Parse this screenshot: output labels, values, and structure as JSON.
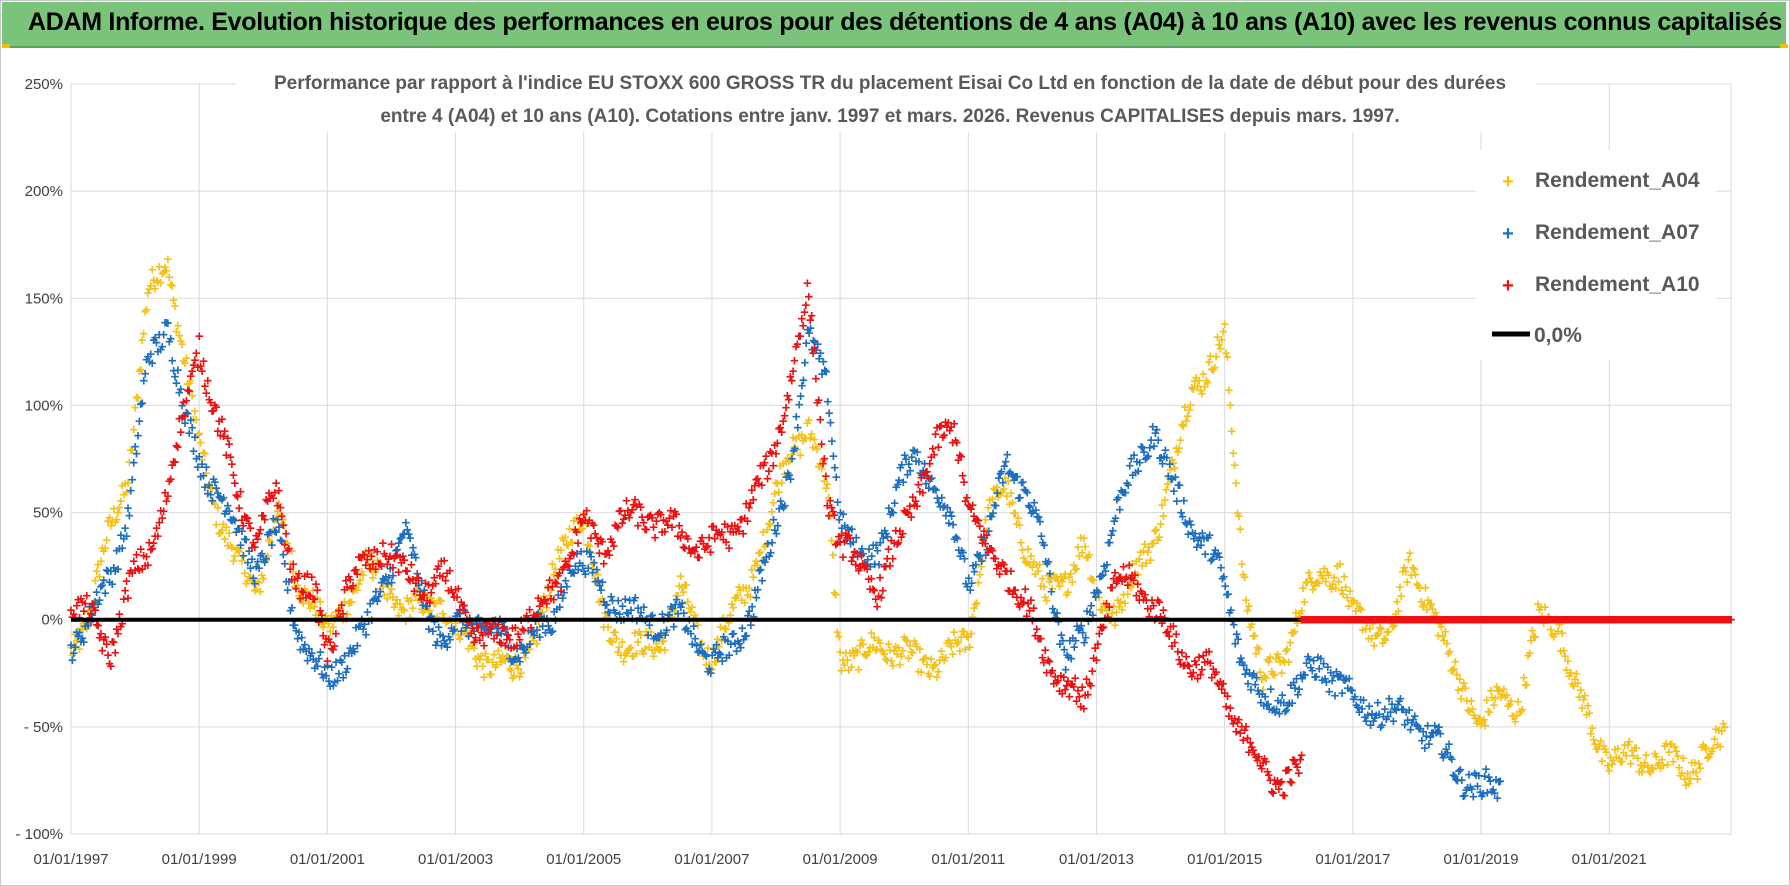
{
  "header": {
    "title": "ADAM Informe. Evolution historique des performances en euros pour des détentions de 4 ans (A04) à 10 ans (A10) avec les revenus connus capitalisés"
  },
  "colors": {
    "a04": "#f5c21b",
    "a07": "#1f6fbf",
    "a10": "#ee1111",
    "zero": "#000000",
    "grid": "#d9d9d9",
    "banner": "#79c37a"
  },
  "chart_data": {
    "type": "scatter",
    "title_line1": "Performance par rapport à l'indice EU STOXX 600 GROSS TR  du placement Eisai Co Ltd en fonction de la date de début pour des durées",
    "title_line2": "entre 4 (A04) et 10 ans (A10).  Cotations entre janv. 1997 et mars. 2026.  Revenus CAPITALISES depuis mars. 1997.",
    "xlabel": "",
    "ylabel": "",
    "xlim": [
      1997.0,
      2022.9
    ],
    "ylim": [
      -100,
      250
    ],
    "y_ticks": [
      -100,
      -50,
      0,
      50,
      100,
      150,
      200,
      250
    ],
    "y_tick_labels": [
      "- 100%",
      "- 50%",
      "0%",
      "50%",
      "100%",
      "150%",
      "200%",
      "250%"
    ],
    "x_ticks": [
      1997,
      1999,
      2001,
      2003,
      2005,
      2007,
      2009,
      2011,
      2013,
      2015,
      2017,
      2019,
      2021
    ],
    "x_tick_labels": [
      "01/01/1997",
      "01/01/1999",
      "01/01/2001",
      "01/01/2003",
      "01/01/2005",
      "01/01/2007",
      "01/01/2009",
      "01/01/2011",
      "01/01/2013",
      "01/01/2015",
      "01/01/2017",
      "01/01/2019",
      "01/01/2021"
    ],
    "legend_position": "top-right",
    "series": [
      {
        "name": "Rendement_A04",
        "x": [
          1997.0,
          1997.3,
          1997.6,
          1997.9,
          1998.2,
          1998.5,
          1998.8,
          1999.0,
          1999.3,
          1999.6,
          1999.9,
          2000.2,
          2000.5,
          2000.8,
          2001.0,
          2001.3,
          2001.6,
          2001.9,
          2002.2,
          2002.5,
          2002.8,
          2003.0,
          2003.3,
          2003.6,
          2003.9,
          2004.2,
          2004.5,
          2004.8,
          2005.0,
          2005.3,
          2005.6,
          2005.9,
          2006.2,
          2006.5,
          2006.8,
          2007.0,
          2007.3,
          2007.6,
          2007.9,
          2008.2,
          2008.5,
          2008.8,
          2009.0,
          2009.3,
          2009.6,
          2009.9,
          2010.2,
          2010.5,
          2010.8,
          2011.0,
          2011.3,
          2011.6,
          2011.9,
          2012.2,
          2012.5,
          2012.8,
          2013.0,
          2013.3,
          2013.6,
          2013.9,
          2014.2,
          2014.5,
          2014.8,
          2015.0,
          2015.3,
          2015.6,
          2015.9,
          2016.2,
          2016.5,
          2016.8,
          2017.0,
          2017.3,
          2017.6,
          2017.9,
          2018.2,
          2018.5,
          2018.8,
          2019.0,
          2019.3,
          2019.6,
          2019.9,
          2020.2,
          2020.5,
          2020.8,
          2021.0,
          2021.3,
          2021.6,
          2021.9,
          2022.2,
          2022.5,
          2022.8
        ],
        "y": [
          -15,
          5,
          40,
          70,
          150,
          170,
          115,
          80,
          50,
          25,
          15,
          50,
          20,
          10,
          -10,
          10,
          25,
          15,
          5,
          5,
          10,
          -5,
          -15,
          -20,
          -25,
          -10,
          15,
          45,
          50,
          0,
          -10,
          -15,
          -10,
          15,
          -10,
          -15,
          0,
          20,
          45,
          80,
          90,
          60,
          -15,
          -20,
          -10,
          -15,
          -20,
          -20,
          -15,
          -10,
          50,
          60,
          35,
          10,
          20,
          35,
          10,
          5,
          20,
          40,
          70,
          110,
          120,
          130,
          20,
          -30,
          -20,
          10,
          20,
          25,
          0,
          -5,
          -5,
          25,
          10,
          -20,
          -35,
          -50,
          -35,
          -40,
          0,
          0,
          -35,
          -55,
          -65,
          -65,
          -65,
          -66,
          -70,
          -62,
          -55
        ]
      },
      {
        "name": "Rendement_A07",
        "x": [
          1997.0,
          1997.3,
          1997.6,
          1997.9,
          1998.2,
          1998.5,
          1998.8,
          1999.0,
          1999.3,
          1999.6,
          1999.9,
          2000.2,
          2000.5,
          2000.8,
          2001.0,
          2001.3,
          2001.6,
          2001.9,
          2002.2,
          2002.5,
          2002.8,
          2003.0,
          2003.3,
          2003.6,
          2003.9,
          2004.2,
          2004.5,
          2004.8,
          2005.0,
          2005.3,
          2005.6,
          2005.9,
          2006.2,
          2006.5,
          2006.8,
          2007.0,
          2007.3,
          2007.6,
          2007.9,
          2008.2,
          2008.5,
          2008.8,
          2009.0,
          2009.3,
          2009.6,
          2009.9,
          2010.2,
          2010.5,
          2010.8,
          2011.0,
          2011.3,
          2011.6,
          2011.9,
          2012.2,
          2012.5,
          2012.8,
          2013.0,
          2013.3,
          2013.6,
          2013.9,
          2014.2,
          2014.5,
          2014.8,
          2015.0,
          2015.3,
          2015.6,
          2015.9,
          2016.2,
          2016.5,
          2016.8,
          2017.0,
          2017.3,
          2017.6,
          2017.9,
          2018.2,
          2018.5,
          2018.8,
          2019.0,
          2019.3
        ],
        "y": [
          -10,
          0,
          20,
          50,
          120,
          140,
          90,
          75,
          60,
          40,
          25,
          40,
          0,
          -20,
          -30,
          -15,
          -5,
          20,
          40,
          10,
          -10,
          -5,
          0,
          -5,
          -15,
          -5,
          -5,
          30,
          25,
          15,
          5,
          0,
          0,
          0,
          -10,
          -20,
          -15,
          5,
          30,
          70,
          130,
          110,
          50,
          25,
          35,
          60,
          80,
          60,
          40,
          20,
          35,
          75,
          60,
          30,
          -15,
          -10,
          15,
          50,
          70,
          90,
          60,
          45,
          30,
          15,
          -20,
          -40,
          -35,
          -30,
          -20,
          -30,
          -40,
          -40,
          -45,
          -45,
          -55,
          -65,
          -75,
          -80,
          -78
        ]
      },
      {
        "name": "Rendement_A10",
        "x": [
          1997.0,
          1997.3,
          1997.6,
          1997.9,
          1998.2,
          1998.5,
          1998.8,
          1999.0,
          1999.3,
          1999.6,
          1999.9,
          2000.2,
          2000.5,
          2000.8,
          2001.0,
          2001.3,
          2001.6,
          2001.9,
          2002.2,
          2002.5,
          2002.8,
          2003.0,
          2003.3,
          2003.6,
          2003.9,
          2004.2,
          2004.5,
          2004.8,
          2005.0,
          2005.3,
          2005.6,
          2005.9,
          2006.2,
          2006.5,
          2006.8,
          2007.0,
          2007.3,
          2007.6,
          2007.9,
          2008.2,
          2008.5,
          2008.8,
          2009.0,
          2009.3,
          2009.6,
          2009.9,
          2010.2,
          2010.5,
          2010.8,
          2011.0,
          2011.3,
          2011.6,
          2011.9,
          2012.2,
          2012.5,
          2012.8,
          2013.0,
          2013.3,
          2013.6,
          2013.9,
          2014.2,
          2014.5,
          2014.8,
          2015.0,
          2015.3,
          2015.6,
          2015.9,
          2016.2
        ],
        "y": [
          10,
          0,
          -15,
          15,
          30,
          60,
          100,
          130,
          90,
          60,
          35,
          60,
          20,
          10,
          -15,
          15,
          25,
          35,
          20,
          15,
          20,
          10,
          -5,
          -10,
          -5,
          0,
          15,
          30,
          45,
          35,
          45,
          50,
          45,
          40,
          35,
          35,
          40,
          55,
          70,
          110,
          150,
          60,
          35,
          25,
          15,
          35,
          60,
          80,
          90,
          55,
          30,
          25,
          5,
          -15,
          -30,
          -40,
          -10,
          15,
          20,
          5,
          -10,
          -20,
          -25,
          -35,
          -55,
          -70,
          -75,
          -72
        ]
      },
      {
        "name": "0,0%",
        "x": [
          1997.0,
          2022.9
        ],
        "y": [
          0,
          0
        ]
      }
    ],
    "flat_zero_segment": {
      "series": "Rendement_A10",
      "x_from": 2016.2,
      "x_to": 2022.9,
      "y": 0
    }
  }
}
